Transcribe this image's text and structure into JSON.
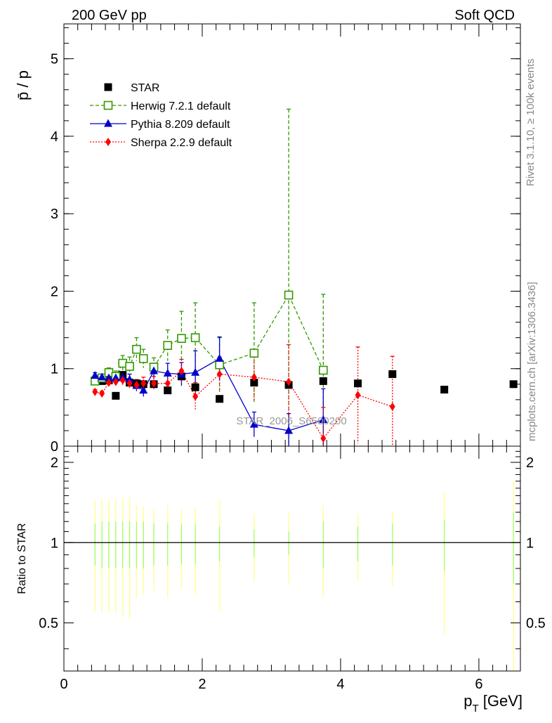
{
  "header": {
    "left": "200 GeV pp",
    "right": "Soft QCD"
  },
  "side_labels": {
    "rivet": "Rivet 3.1.10, ≥ 100k events",
    "mcplots": "mcplots.cern.ch [arXiv:1306.3436]"
  },
  "watermark": "STAR_2006_S6500200",
  "colors": {
    "star": "#000000",
    "herwig": "#339900",
    "pythia": "#0000cc",
    "sherpa": "#ff0000",
    "band_outer": "#ffff99",
    "band_inner": "#99ff66"
  },
  "chart_data": [
    {
      "type": "line",
      "title": "",
      "xlabel": "p_T [GeV]",
      "ylabel": "p̄ / p",
      "xlim": [
        0,
        6.6
      ],
      "ylim": [
        0,
        5.45
      ],
      "yticks": [
        0,
        1,
        2,
        3,
        4,
        5
      ],
      "legend_position": "top-left",
      "series": [
        {
          "name": "STAR",
          "marker": "filled-square",
          "x": [
            0.45,
            0.55,
            0.65,
            0.75,
            0.85,
            0.95,
            1.05,
            1.15,
            1.3,
            1.5,
            1.7,
            1.9,
            2.25,
            2.75,
            3.25,
            3.75,
            4.25,
            4.75,
            5.5,
            6.5
          ],
          "y": [
            0.84,
            0.84,
            0.85,
            0.65,
            0.92,
            0.82,
            0.81,
            0.8,
            0.8,
            0.72,
            0.9,
            0.76,
            0.61,
            0.82,
            0.79,
            0.84,
            0.81,
            0.93,
            0.73,
            0.8
          ],
          "yerr": [
            0.01,
            0.01,
            0.01,
            0.01,
            0.01,
            0.01,
            0.01,
            0.01,
            0.01,
            0.02,
            0.02,
            0.02,
            0.02,
            0.02,
            0.03,
            0.03,
            0.03,
            0.03,
            0.03,
            0.03
          ]
        },
        {
          "name": "Herwig 7.2.1 default",
          "marker": "open-square",
          "line": "dashed",
          "x": [
            0.45,
            0.55,
            0.65,
            0.75,
            0.85,
            0.95,
            1.05,
            1.15,
            1.3,
            1.5,
            1.7,
            1.9,
            2.25,
            2.75,
            3.25,
            3.75
          ],
          "y": [
            0.84,
            0.88,
            0.95,
            0.9,
            1.07,
            1.03,
            1.25,
            1.13,
            1.02,
            1.3,
            1.39,
            1.4,
            1.05,
            1.2,
            1.95,
            0.98
          ],
          "yerr": [
            0.04,
            0.05,
            0.06,
            0.07,
            0.1,
            0.12,
            0.15,
            0.12,
            0.12,
            0.2,
            0.35,
            0.45,
            0.35,
            0.65,
            2.4,
            0.98
          ]
        },
        {
          "name": "Pythia 8.209 default",
          "marker": "filled-triangle",
          "line": "solid",
          "x": [
            0.45,
            0.55,
            0.65,
            0.75,
            0.85,
            0.95,
            1.05,
            1.15,
            1.3,
            1.5,
            1.7,
            1.9,
            2.25,
            2.75,
            3.25,
            3.75
          ],
          "y": [
            0.91,
            0.89,
            0.88,
            0.88,
            0.89,
            0.86,
            0.78,
            0.72,
            0.97,
            0.94,
            0.93,
            0.95,
            1.13,
            0.28,
            0.2,
            0.34
          ],
          "yerr": [
            0.04,
            0.04,
            0.05,
            0.05,
            0.06,
            0.07,
            0.07,
            0.08,
            0.1,
            0.13,
            0.15,
            0.28,
            0.28,
            0.16,
            0.22,
            0.4
          ]
        },
        {
          "name": "Sherpa 2.2.9 default",
          "marker": "filled-diamond",
          "line": "dotted",
          "x": [
            0.45,
            0.55,
            0.65,
            0.75,
            0.85,
            0.95,
            1.05,
            1.15,
            1.3,
            1.5,
            1.7,
            1.9,
            2.25,
            2.75,
            3.25,
            3.75,
            4.25,
            4.75
          ],
          "y": [
            0.7,
            0.68,
            0.82,
            0.83,
            0.85,
            0.81,
            0.79,
            0.81,
            0.81,
            0.81,
            0.97,
            0.64,
            0.93,
            0.89,
            0.83,
            0.1,
            0.66,
            0.51
          ],
          "yerr": [
            0.03,
            0.03,
            0.04,
            0.05,
            0.06,
            0.06,
            0.07,
            0.08,
            0.09,
            0.1,
            0.15,
            0.18,
            0.22,
            0.3,
            0.48,
            0.4,
            0.62,
            0.65
          ]
        }
      ]
    },
    {
      "type": "line",
      "title": "",
      "xlabel": "p_T [GeV]",
      "ylabel": "Ratio to STAR",
      "xlim": [
        0,
        6.6
      ],
      "ylim": [
        0.33,
        2.3
      ],
      "yticks": [
        0.5,
        1,
        2
      ],
      "xticks": [
        0,
        2,
        4,
        6
      ],
      "reference_line": 1,
      "bands": {
        "x": [
          0.45,
          0.55,
          0.65,
          0.75,
          0.85,
          0.95,
          1.05,
          1.15,
          1.3,
          1.5,
          1.7,
          1.9,
          2.25,
          2.75,
          3.25,
          3.75,
          4.25,
          4.75,
          5.5,
          6.5
        ],
        "outer": [
          0.55,
          0.55,
          0.55,
          0.55,
          0.53,
          0.52,
          0.62,
          0.64,
          0.66,
          0.62,
          0.67,
          0.64,
          0.55,
          0.72,
          0.7,
          0.62,
          0.72,
          0.69,
          0.45,
          0.3
        ],
        "inner": [
          0.82,
          0.8,
          0.8,
          0.8,
          0.8,
          0.8,
          0.8,
          0.8,
          0.82,
          0.82,
          0.83,
          0.83,
          0.85,
          0.88,
          0.9,
          0.8,
          0.85,
          0.82,
          0.78,
          0.7
        ]
      }
    }
  ]
}
